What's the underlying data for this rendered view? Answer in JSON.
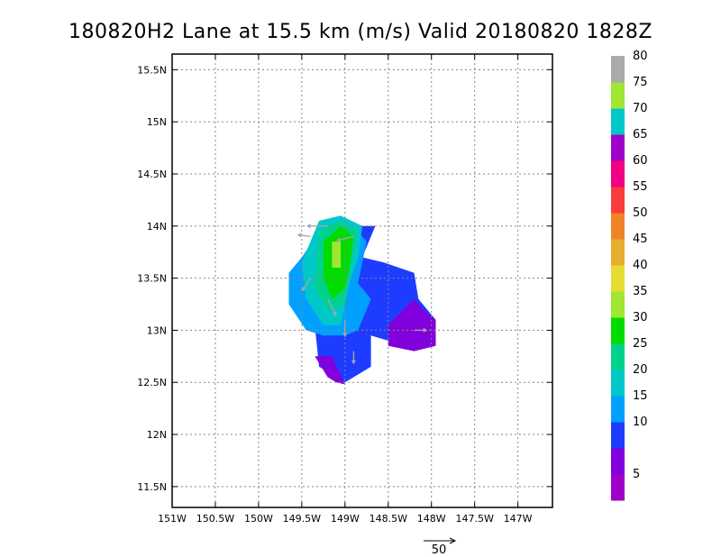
{
  "chart_data": {
    "type": "heatmap",
    "title": "180820H2 Lane at 15.5 km (m/s) Valid 20180820  1828Z",
    "xlabel": "",
    "ylabel": "",
    "xlim": [
      -151,
      -146.6
    ],
    "ylim": [
      11.3,
      15.65
    ],
    "grid": true,
    "x_ticks": [
      {
        "value": -151,
        "label": "151W"
      },
      {
        "value": -150.5,
        "label": "150.5W"
      },
      {
        "value": -150,
        "label": "150W"
      },
      {
        "value": -149.5,
        "label": "149.5W"
      },
      {
        "value": -149,
        "label": "149W"
      },
      {
        "value": -148.5,
        "label": "148.5W"
      },
      {
        "value": -148,
        "label": "148W"
      },
      {
        "value": -147.5,
        "label": "147.5W"
      },
      {
        "value": -147,
        "label": "147W"
      }
    ],
    "y_ticks": [
      {
        "value": 11.5,
        "label": "11.5N"
      },
      {
        "value": 12,
        "label": "12N"
      },
      {
        "value": 12.5,
        "label": "12.5N"
      },
      {
        "value": 13,
        "label": "13N"
      },
      {
        "value": 13.5,
        "label": "13.5N"
      },
      {
        "value": 14,
        "label": "14N"
      },
      {
        "value": 14.5,
        "label": "14.5N"
      },
      {
        "value": 15,
        "label": "15N"
      },
      {
        "value": 15.5,
        "label": "15.5N"
      }
    ],
    "colorbar": {
      "bins": [
        {
          "color": "#a000c8"
        },
        {
          "color": "#8200dc"
        },
        {
          "color": "#1e3cff"
        },
        {
          "color": "#00a0ff"
        },
        {
          "color": "#00c8c8"
        },
        {
          "color": "#00d28c"
        },
        {
          "color": "#00dc00"
        },
        {
          "color": "#a0e632"
        },
        {
          "color": "#e6dc32"
        },
        {
          "color": "#e6af2d"
        },
        {
          "color": "#f08228"
        },
        {
          "color": "#fa3c3c"
        },
        {
          "color": "#f00082"
        },
        {
          "color": "#a000c8"
        },
        {
          "color": "#00c8c8"
        },
        {
          "color": "#a0e632"
        },
        {
          "color": "#aaaaaa"
        }
      ],
      "labels": [
        {
          "bin_edge": 1,
          "label": "5"
        },
        {
          "bin_edge": 2,
          "label": ""
        },
        {
          "bin_edge": 3,
          "label": "10"
        },
        {
          "bin_edge": 4,
          "label": "15"
        },
        {
          "bin_edge": 5,
          "label": "20"
        },
        {
          "bin_edge": 6,
          "label": "25"
        },
        {
          "bin_edge": 7,
          "label": "30"
        },
        {
          "bin_edge": 8,
          "label": "35"
        },
        {
          "bin_edge": 9,
          "label": "40"
        },
        {
          "bin_edge": 10,
          "label": "45"
        },
        {
          "bin_edge": 11,
          "label": "50"
        },
        {
          "bin_edge": 12,
          "label": "55"
        },
        {
          "bin_edge": 13,
          "label": "60"
        },
        {
          "bin_edge": 14,
          "label": "65"
        },
        {
          "bin_edge": 15,
          "label": "70"
        },
        {
          "bin_edge": 16,
          "label": "75"
        },
        {
          "bin_edge": 17,
          "label": "80"
        }
      ]
    },
    "regions": [
      {
        "level": "10 m/s",
        "color": "#1e3cff",
        "polygon": [
          [
            -149.35,
            13.05
          ],
          [
            -149.3,
            12.65
          ],
          [
            -149.0,
            12.5
          ],
          [
            -148.7,
            12.65
          ],
          [
            -148.7,
            12.95
          ],
          [
            -148.5,
            12.9
          ],
          [
            -148.2,
            12.85
          ],
          [
            -147.95,
            12.95
          ],
          [
            -147.95,
            13.1
          ],
          [
            -148.15,
            13.3
          ],
          [
            -148.2,
            13.55
          ],
          [
            -148.55,
            13.65
          ],
          [
            -148.8,
            13.7
          ],
          [
            -148.65,
            14.0
          ],
          [
            -148.9,
            14.0
          ],
          [
            -149.1,
            13.5
          ],
          [
            -149.35,
            13.05
          ]
        ]
      },
      {
        "level": "5 m/s",
        "color": "#8200dc",
        "polygon": [
          [
            -148.5,
            13.05
          ],
          [
            -148.2,
            13.3
          ],
          [
            -148.1,
            13.2
          ],
          [
            -147.95,
            13.1
          ],
          [
            -147.95,
            12.85
          ],
          [
            -148.2,
            12.8
          ],
          [
            -148.5,
            12.85
          ]
        ]
      },
      {
        "level": "5 m/s",
        "color": "#8200dc",
        "polygon": [
          [
            -149.35,
            12.75
          ],
          [
            -149.2,
            12.55
          ],
          [
            -149.1,
            12.5
          ],
          [
            -149.0,
            12.48
          ],
          [
            -149.15,
            12.75
          ]
        ]
      },
      {
        "level": "15 m/s",
        "color": "#00a0ff",
        "polygon": [
          [
            -149.65,
            13.55
          ],
          [
            -149.5,
            13.7
          ],
          [
            -149.3,
            13.95
          ],
          [
            -148.95,
            14.05
          ],
          [
            -148.75,
            13.85
          ],
          [
            -148.85,
            13.45
          ],
          [
            -148.7,
            13.3
          ],
          [
            -148.85,
            13.0
          ],
          [
            -149.0,
            12.95
          ],
          [
            -149.25,
            12.95
          ],
          [
            -149.45,
            13.0
          ],
          [
            -149.65,
            13.25
          ]
        ]
      },
      {
        "level": "20 m/s",
        "color": "#00c8c8",
        "polygon": [
          [
            -149.5,
            13.65
          ],
          [
            -149.3,
            14.05
          ],
          [
            -149.05,
            14.1
          ],
          [
            -148.8,
            14.0
          ],
          [
            -148.85,
            13.7
          ],
          [
            -148.95,
            13.45
          ],
          [
            -149.05,
            13.05
          ],
          [
            -149.25,
            13.05
          ],
          [
            -149.45,
            13.3
          ]
        ]
      },
      {
        "level": "25 m/s",
        "color": "#00d28c",
        "polygon": [
          [
            -149.3,
            13.95
          ],
          [
            -149.05,
            14.05
          ],
          [
            -148.85,
            13.95
          ],
          [
            -148.9,
            13.7
          ],
          [
            -148.95,
            13.5
          ],
          [
            -149.0,
            13.25
          ],
          [
            -149.2,
            13.2
          ],
          [
            -149.35,
            13.4
          ]
        ]
      },
      {
        "level": "30 m/s",
        "color": "#00dc00",
        "polygon": [
          [
            -149.25,
            13.85
          ],
          [
            -149.05,
            14.0
          ],
          [
            -148.9,
            13.9
          ],
          [
            -148.95,
            13.6
          ],
          [
            -149.0,
            13.4
          ],
          [
            -149.15,
            13.3
          ],
          [
            -149.25,
            13.5
          ]
        ]
      },
      {
        "level": "35 m/s",
        "color": "#a0e632",
        "polygon": [
          [
            -149.15,
            13.85
          ],
          [
            -149.05,
            13.85
          ],
          [
            -149.05,
            13.6
          ],
          [
            -149.15,
            13.6
          ]
        ]
      }
    ],
    "wind_vectors_sample": [
      {
        "x": -149.4,
        "y": 13.9,
        "u": -15,
        "v": 2
      },
      {
        "x": -149.2,
        "y": 14.0,
        "u": -25,
        "v": 0
      },
      {
        "x": -148.9,
        "y": 13.9,
        "u": -20,
        "v": -5
      },
      {
        "x": -149.4,
        "y": 13.5,
        "u": -10,
        "v": -15
      },
      {
        "x": -149.2,
        "y": 13.3,
        "u": 10,
        "v": -20
      },
      {
        "x": -149.0,
        "y": 13.1,
        "u": 0,
        "v": -20
      },
      {
        "x": -148.9,
        "y": 12.8,
        "u": 0,
        "v": -15
      },
      {
        "x": -148.2,
        "y": 13.0,
        "u": 15,
        "v": 0
      }
    ],
    "reference_vector": {
      "value": 50,
      "label": "50"
    }
  }
}
